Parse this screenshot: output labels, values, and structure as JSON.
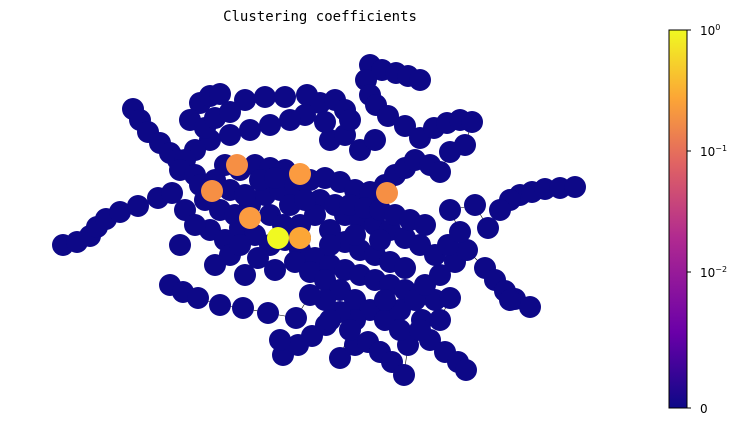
{
  "chart_data": {
    "type": "network",
    "title": "Clustering coefficients",
    "colorbar": {
      "colormap": "plasma",
      "scale": "symlog",
      "range": [
        0,
        1
      ],
      "ticks": [
        {
          "base": "0",
          "exp": ""
        },
        {
          "base": "10",
          "exp": "−2"
        },
        {
          "base": "10",
          "exp": "−1"
        },
        {
          "base": "10",
          "exp": "0"
        }
      ],
      "colors": [
        "#0d0887",
        "#6a00a8",
        "#b12a90",
        "#e16462",
        "#fca636",
        "#f0f921"
      ]
    },
    "node_color_default": "#0d0887",
    "highlight_nodes": [
      {
        "value": 1.0,
        "color": "#f0f921"
      },
      {
        "value": 0.33,
        "color": "#fca636"
      },
      {
        "value": 0.2,
        "color": "#fb9b40"
      },
      {
        "value": 0.17,
        "color": "#f68f44"
      },
      {
        "value": 0.17,
        "color": "#f68f44"
      },
      {
        "value": 0.17,
        "color": "#f68f44"
      },
      {
        "value": 0.2,
        "color": "#fb9b40"
      }
    ]
  }
}
